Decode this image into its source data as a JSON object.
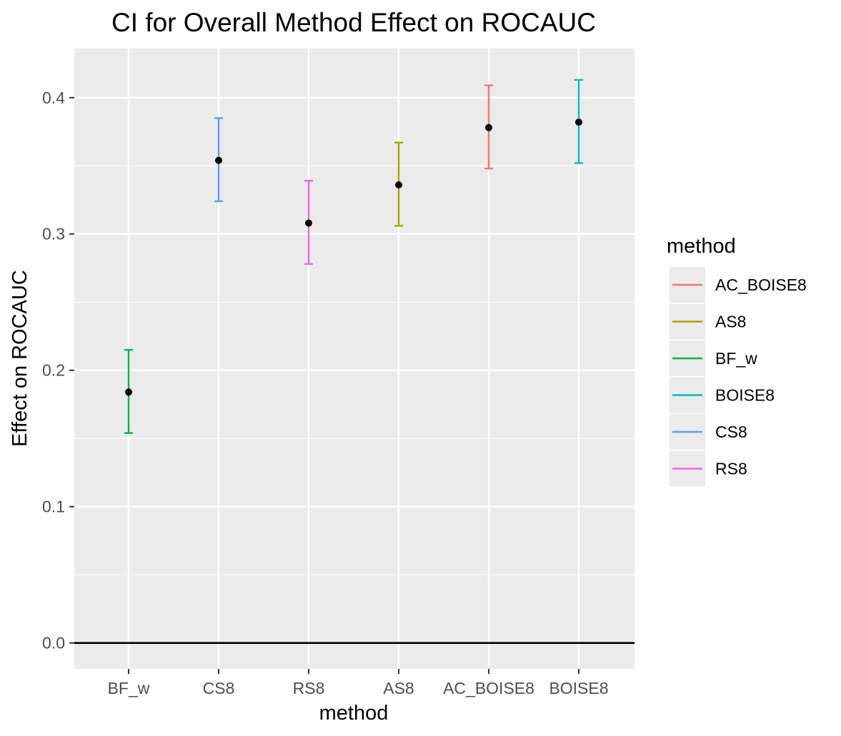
{
  "chart_data": {
    "type": "errorbar",
    "title": "CI for Overall Method Effect on ROCAUC",
    "xlabel": "method",
    "ylabel": "Effect on ROCAUC",
    "categories": [
      "BF_w",
      "CS8",
      "RS8",
      "AS8",
      "AC_BOISE8",
      "BOISE8"
    ],
    "points": [
      {
        "method": "BF_w",
        "estimate": 0.184,
        "lower": 0.154,
        "upper": 0.215
      },
      {
        "method": "CS8",
        "estimate": 0.354,
        "lower": 0.324,
        "upper": 0.385
      },
      {
        "method": "RS8",
        "estimate": 0.308,
        "lower": 0.278,
        "upper": 0.339
      },
      {
        "method": "AS8",
        "estimate": 0.336,
        "lower": 0.306,
        "upper": 0.367
      },
      {
        "method": "AC_BOISE8",
        "estimate": 0.378,
        "lower": 0.348,
        "upper": 0.409
      },
      {
        "method": "BOISE8",
        "estimate": 0.382,
        "lower": 0.352,
        "upper": 0.413
      }
    ],
    "ylim": [
      -0.019,
      0.436
    ],
    "yticks": [
      0.0,
      0.1,
      0.2,
      0.3,
      0.4
    ],
    "ytick_labels": [
      "0.0",
      "0.1",
      "0.2",
      "0.3",
      "0.4"
    ],
    "reference_line": 0,
    "grid": true,
    "legend": {
      "title": "method",
      "position": "right",
      "items": [
        {
          "label": "AC_BOISE8",
          "color": "#F8766D"
        },
        {
          "label": "AS8",
          "color": "#B79F00"
        },
        {
          "label": "BF_w",
          "color": "#00BA38"
        },
        {
          "label": "BOISE8",
          "color": "#00BFC4"
        },
        {
          "label": "CS8",
          "color": "#619CFF"
        },
        {
          "label": "RS8",
          "color": "#F564E3"
        }
      ]
    },
    "colors": {
      "panel_background": "#EBEBEB",
      "grid": "#FFFFFF",
      "point": "#000000",
      "reference_line": "#000000"
    }
  }
}
